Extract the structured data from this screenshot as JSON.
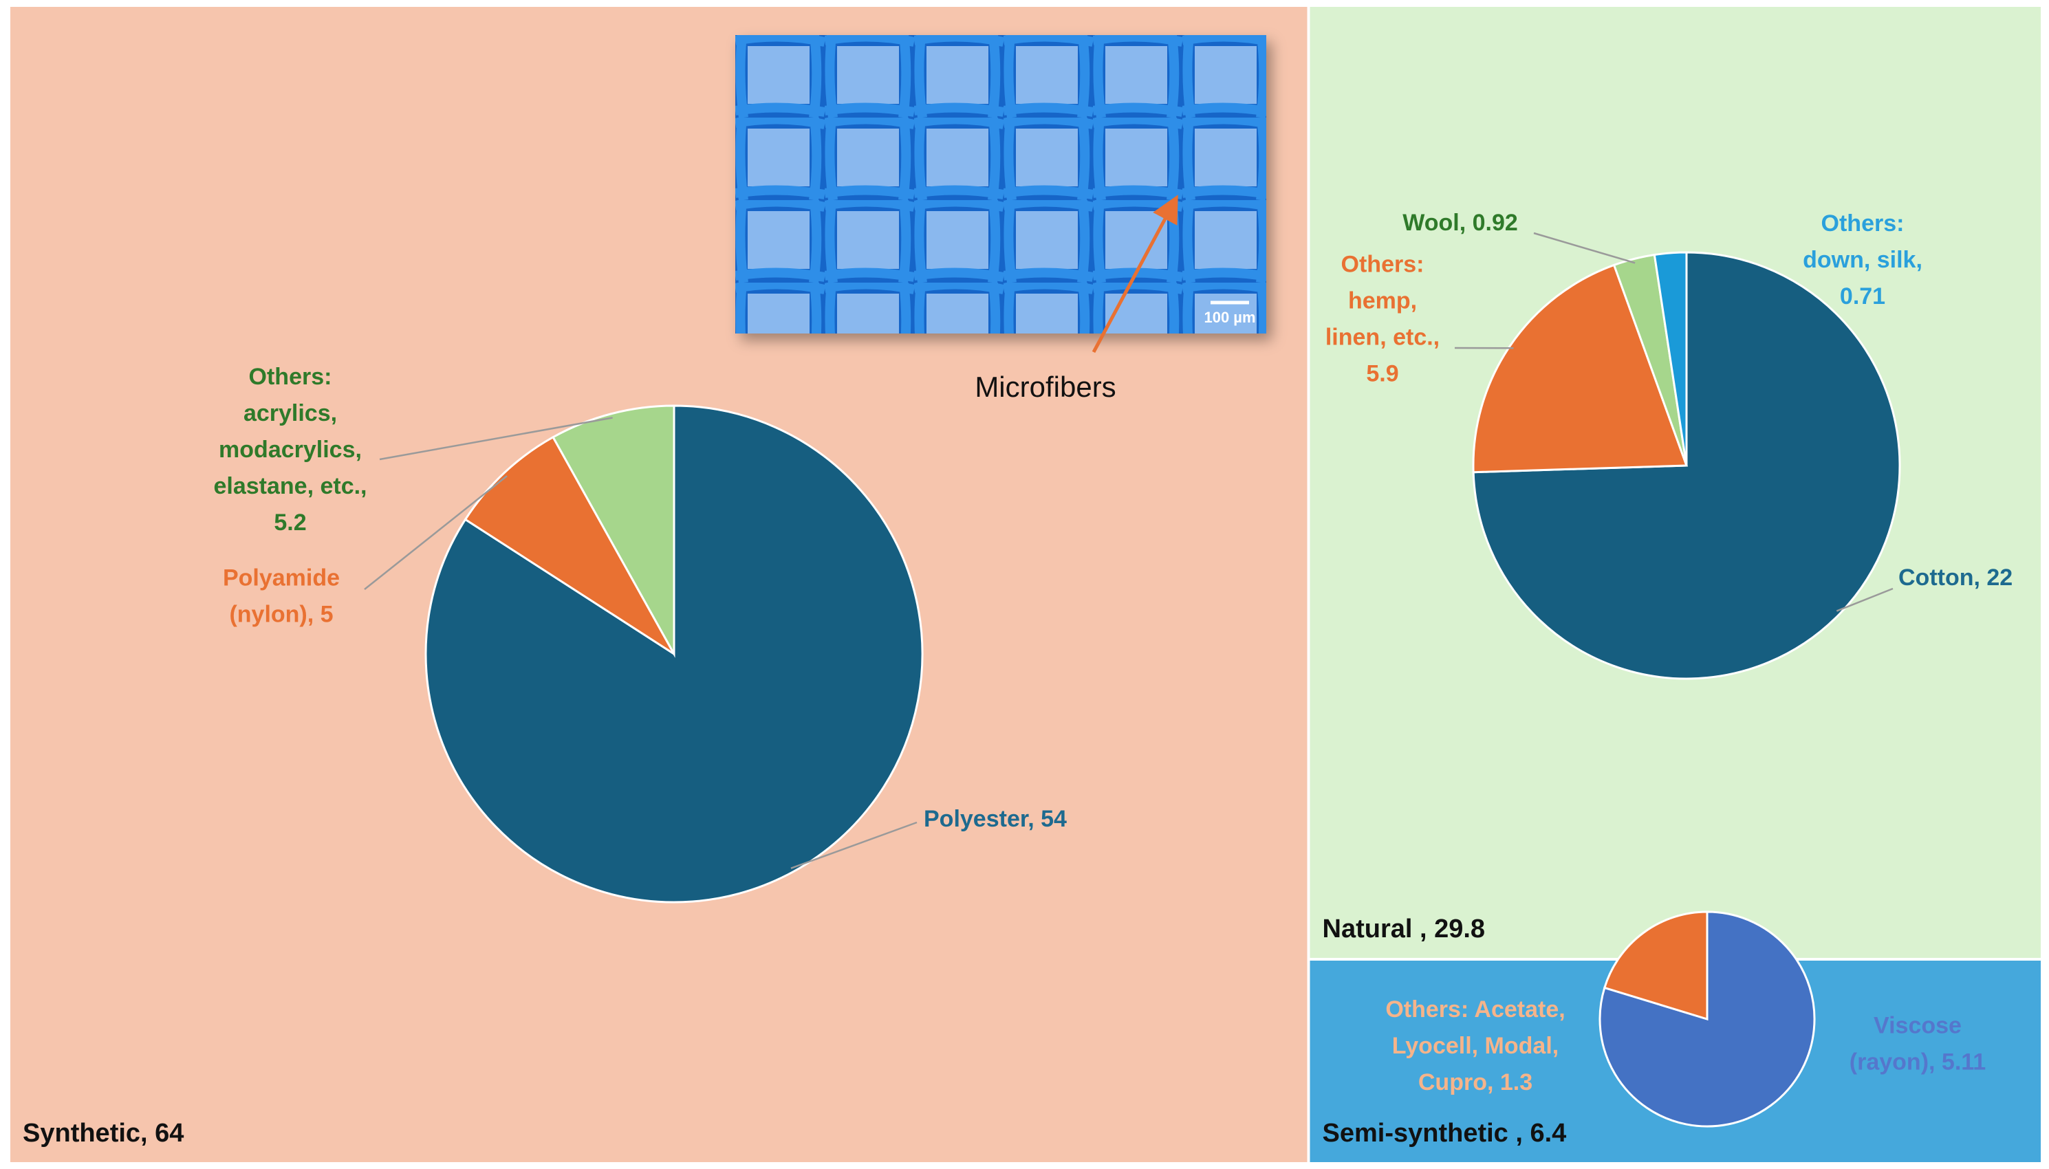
{
  "chart_data": [
    {
      "type": "treemap",
      "values": [
        64,
        29.8,
        6.4
      ],
      "value_labels": [
        "Synthetic, 64",
        "Natural , 29.8",
        "Semi-synthetic , 6.4"
      ],
      "colors": [
        "#f6c5ad",
        "#daf2d0",
        "#45a8dc"
      ],
      "annotations": [
        "Microfibers",
        "100 µm"
      ]
    },
    {
      "type": "pie",
      "values": [
        54,
        5,
        5.2
      ],
      "value_labels": [
        "Polyester, 54",
        "Polyamide\n(nylon), 5",
        "Others:\nacrylics,\nmodacrylics,\nelastane, etc.,\n5.2"
      ],
      "colors": [
        "#165e80",
        "#e97132",
        "#a6d68c"
      ],
      "label_colors": [
        "#1d6a8f",
        "#e97132",
        "#2f7a2a"
      ]
    },
    {
      "type": "pie",
      "values": [
        22,
        5.9,
        0.92,
        0.71
      ],
      "value_labels": [
        "Cotton, 22",
        "Others:\nhemp,\nlinen, etc.,\n5.9",
        "Wool, 0.92",
        "Others:\ndown, silk,\n0.71"
      ],
      "colors": [
        "#165e80",
        "#e97132",
        "#a6d68c",
        "#1a9ad8"
      ],
      "label_colors": [
        "#1d6a8f",
        "#e97132",
        "#2f7a2a",
        "#2aa0dc"
      ]
    },
    {
      "type": "pie",
      "values": [
        5.11,
        1.3
      ],
      "value_labels": [
        "Viscose\n(rayon), 5.11",
        "Others: Acetate,\nLyocell, Modal,\nCupro, 1.3"
      ],
      "colors": [
        "#4472c4",
        "#e97132"
      ],
      "label_colors": [
        "#5577cc",
        "#f6b48a"
      ]
    }
  ]
}
